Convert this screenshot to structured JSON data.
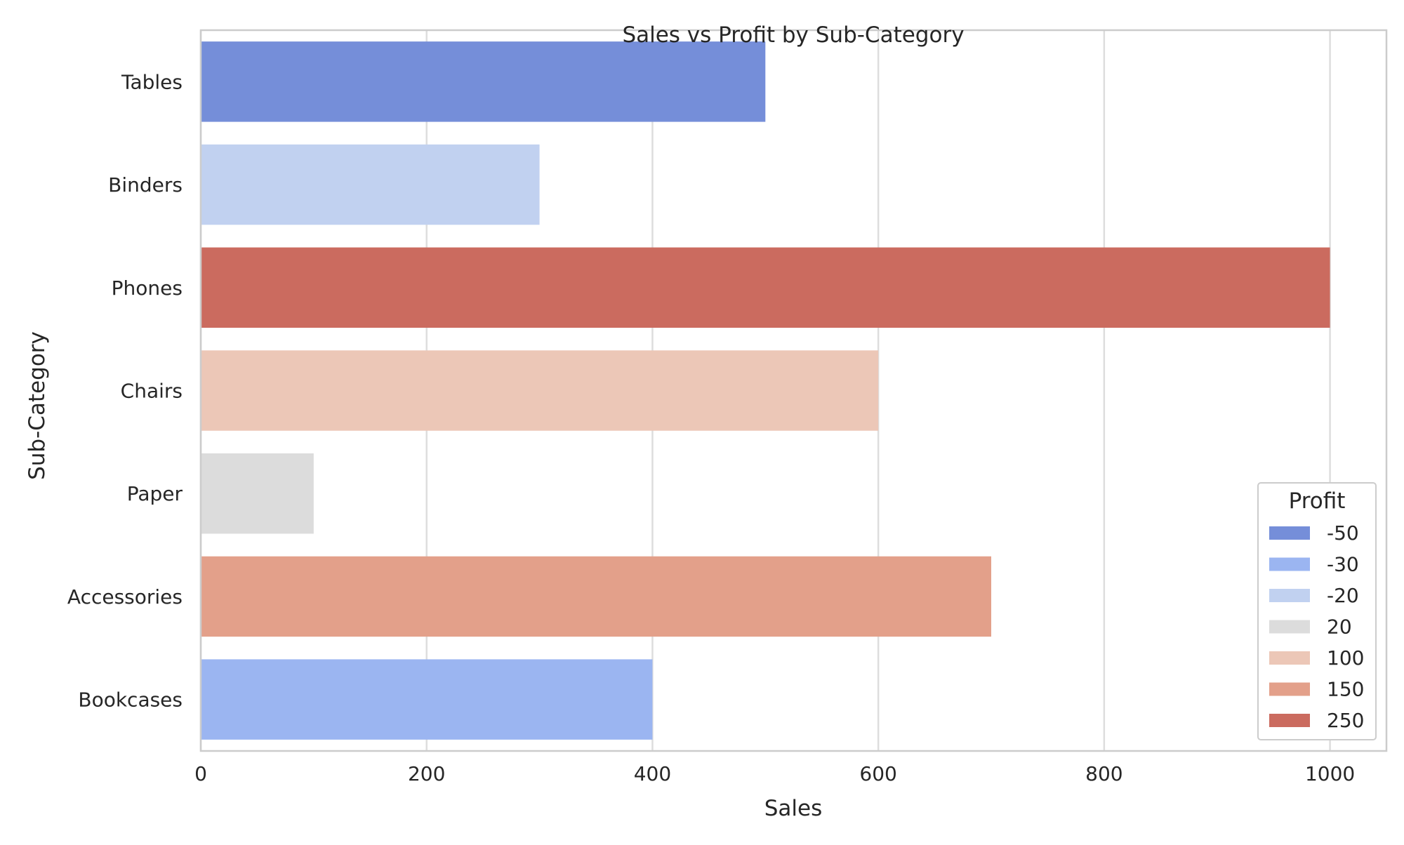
{
  "chart_data": {
    "type": "bar",
    "orientation": "horizontal",
    "title": "Sales vs Profit by Sub-Category",
    "xlabel": "Sales",
    "ylabel": "Sub-Category",
    "xlim": [
      0,
      1050
    ],
    "xticks": [
      0,
      200,
      400,
      600,
      800,
      1000
    ],
    "grid": true,
    "legend_title": "Profit",
    "legend_position": "lower-right",
    "categories": [
      "Tables",
      "Binders",
      "Phones",
      "Chairs",
      "Paper",
      "Accessories",
      "Bookcases"
    ],
    "values": [
      500,
      300,
      1000,
      600,
      100,
      700,
      400
    ],
    "hue_values": [
      -50,
      -20,
      250,
      100,
      20,
      150,
      -30
    ],
    "legend": [
      {
        "label": "-50",
        "color": "#758ed9"
      },
      {
        "label": "-30",
        "color": "#9bb5f1"
      },
      {
        "label": "-20",
        "color": "#c1d1f0"
      },
      {
        "label": "20",
        "color": "#dcdcdc"
      },
      {
        "label": "100",
        "color": "#ecc7b7"
      },
      {
        "label": "150",
        "color": "#e3a08a"
      },
      {
        "label": "250",
        "color": "#cb6b5f"
      }
    ]
  }
}
